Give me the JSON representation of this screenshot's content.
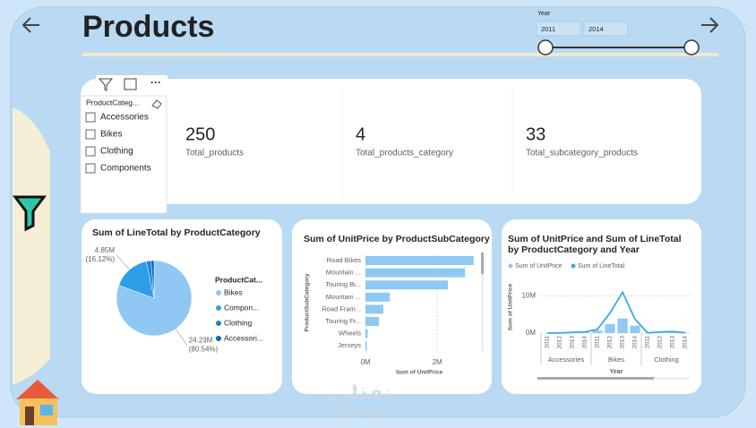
{
  "header": {
    "title": "Products"
  },
  "year_slicer": {
    "label": "Year",
    "start": "2011",
    "end": "2014"
  },
  "slicer": {
    "title": "ProductCateg...",
    "items": [
      "Accessories",
      "Bikes",
      "Clothing",
      "Components"
    ]
  },
  "cards": [
    {
      "value": 250,
      "label": "Total_products"
    },
    {
      "value": 4,
      "label": "Total_products_category"
    },
    {
      "value": 33,
      "label": "Total_subcategory_products"
    }
  ],
  "chart_data": [
    {
      "type": "pie",
      "title": "Sum of LineTotal by ProductCategory",
      "legend_title": "ProductCat...",
      "categories": [
        "Bikes",
        "Compon...",
        "Clothing",
        "Accessori..."
      ],
      "values": [
        24230000,
        4850000,
        600000,
        400000
      ],
      "value_labels": [
        "24.23M",
        "4.85M",
        null,
        null
      ],
      "percent_labels": [
        "(80.54%)",
        "(16.12%)",
        null,
        null
      ],
      "colors": [
        "#8fc8f3",
        "#2e9fe6",
        "#1786d6",
        "#0b63bd"
      ]
    },
    {
      "type": "hbar",
      "title": "Sum of UnitPrice by ProductSubCategory",
      "xlabel": "Sum of UnitPrice",
      "ylabel": "ProductSubCategory",
      "categories": [
        "Road Bikes",
        "Mountain ...",
        "Touring Bi...",
        "Mountain ...",
        "Road Fram...",
        "Touring Fr...",
        "Wheels",
        "Jerseys"
      ],
      "values": [
        3020000,
        2780000,
        2300000,
        680000,
        500000,
        380000,
        60000,
        40000
      ],
      "color": "#8fc8f3",
      "xlim": [
        0,
        3200000
      ],
      "xticks": [
        {
          "value": 0,
          "label": "0M"
        },
        {
          "value": 2000000,
          "label": "2M"
        }
      ],
      "grid": true
    },
    {
      "type": "combo",
      "title": "Sum of UnitPrice and Sum of LineTotal by ProductCategory and Year",
      "xlabel": "Year",
      "ylabel": "Sum of UnitPrice",
      "groups": [
        "Accessories",
        "Bikes",
        "Clothing"
      ],
      "categories": [
        "2011",
        "2012",
        "2013",
        "2014",
        "2011",
        "2012",
        "2013",
        "2014",
        "2011",
        "2012",
        "2013",
        "2014"
      ],
      "series": [
        {
          "name": "Sum of UnitPrice",
          "kind": "bar",
          "color": "#8fc8f3",
          "values": [
            10000,
            20000,
            150000,
            200000,
            700000,
            2400000,
            3900000,
            2000000,
            20000,
            100000,
            150000,
            60000
          ]
        },
        {
          "name": "Sum of LineTotal",
          "kind": "line",
          "color": "#3ea9e6",
          "values": [
            20000,
            30000,
            200000,
            300000,
            1000000,
            5400000,
            11000000,
            3700000,
            50000,
            300000,
            400000,
            100000
          ]
        }
      ],
      "ylim": [
        0,
        13000000
      ],
      "yticks": [
        {
          "value": 0,
          "label": "0M"
        },
        {
          "value": 10000000,
          "label": "10M"
        }
      ],
      "grid": true
    }
  ],
  "watermark": {
    "brand": "نفذلي",
    "url": "nafezly.com"
  }
}
